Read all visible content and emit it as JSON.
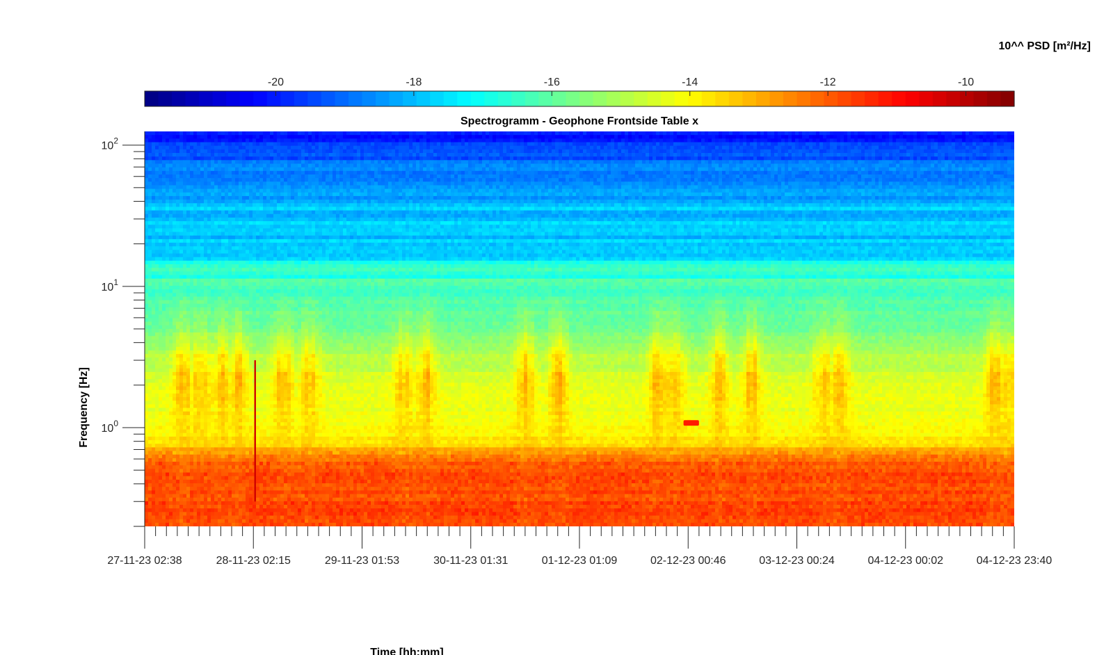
{
  "chart_data": {
    "type": "heatmap",
    "title": "Spectrogramm - Geophone Frontside Table x",
    "xlabel": "Time [hh:mm]",
    "ylabel": "Frequency [Hz]",
    "colorbar": {
      "label": "10^^ PSD [m²/Hz]",
      "colormap": "jet",
      "range": [
        -21.9,
        -9.3
      ],
      "ticks": [
        -20,
        -18,
        -16,
        -14,
        -12,
        -10
      ],
      "tick_labels": [
        "-20",
        "-18",
        "-16",
        "-14",
        "-12",
        "-10"
      ],
      "placement": "top"
    },
    "x_axis": {
      "tick_labels": [
        "27-11-23 02:38",
        "28-11-23 02:15",
        "29-11-23 01:53",
        "30-11-23 01:31",
        "01-12-23 01:09",
        "02-12-23 00:46",
        "03-12-23 00:24",
        "04-12-23 00:02",
        "04-12-23 23:40"
      ],
      "range": [
        "27-11-23 02:38",
        "04-12-23 23:40"
      ],
      "minor_ticks_per_major": 9
    },
    "y_axis": {
      "scale": "log",
      "range": [
        0.2,
        125
      ],
      "ticks": [
        1,
        10,
        100
      ],
      "tick_labels": [
        {
          "base": "10",
          "exp": "0"
        },
        {
          "base": "10",
          "exp": "1"
        },
        {
          "base": "10",
          "exp": "2"
        }
      ]
    },
    "psd_profile": [
      {
        "f": 0.2,
        "psd": -11.6
      },
      {
        "f": 0.45,
        "psd": -11.8
      },
      {
        "f": 0.6,
        "psd": -12.1
      },
      {
        "f": 0.75,
        "psd": -13.5
      },
      {
        "f": 1.0,
        "psd": -14.1
      },
      {
        "f": 2.0,
        "psd": -14.5
      },
      {
        "f": 3.5,
        "psd": -15.0
      },
      {
        "f": 5.0,
        "psd": -15.9
      },
      {
        "f": 10.0,
        "psd": -16.4
      },
      {
        "f": 14.0,
        "psd": -16.6
      },
      {
        "f": 17.0,
        "psd": -17.9
      },
      {
        "f": 30.0,
        "psd": -17.8
      },
      {
        "f": 60.0,
        "psd": -18.5
      },
      {
        "f": 90.0,
        "psd": -19.5
      },
      {
        "f": 125.0,
        "psd": -20.2
      }
    ],
    "activity_bursts_day": [
      0.35,
      0.5,
      0.7,
      0.85,
      1.25,
      1.5,
      2.35,
      2.55,
      3.45,
      3.75,
      4.65,
      4.8,
      5.2,
      5.5,
      6.15,
      6.3,
      7.7,
      7.8
    ],
    "features": [
      {
        "time_day": 1.0,
        "f_min": 0.3,
        "f_max": 3.0,
        "psd": -10.3
      },
      {
        "time_day": 4.95,
        "f": 1.08,
        "duration_day": 0.14,
        "psd": -11.2
      }
    ]
  }
}
